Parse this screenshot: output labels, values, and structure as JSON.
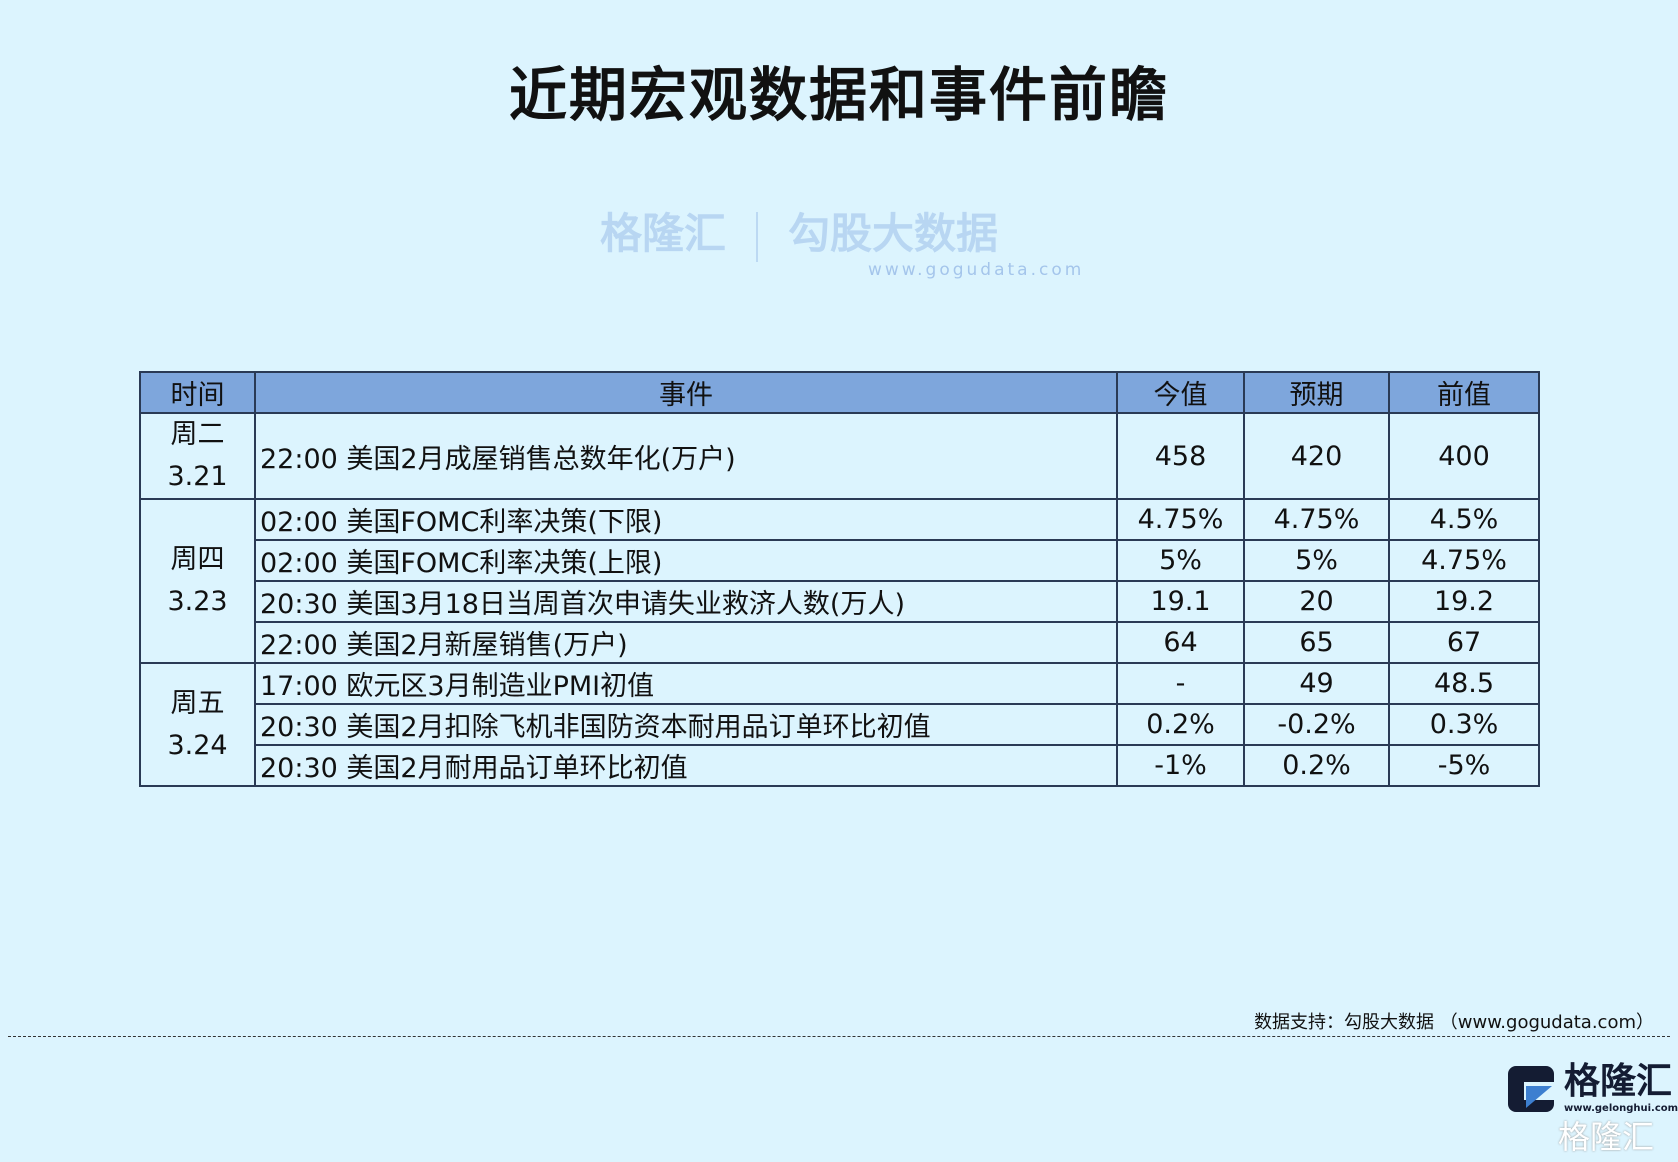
{
  "title": "近期宏观数据和事件前瞻",
  "table": {
    "headers": [
      "时间",
      "事件",
      "今值",
      "预期",
      "前值"
    ],
    "groups": [
      {
        "day": "周二",
        "date": "3.21",
        "rows": [
          {
            "event": "22:00 美国2月成屋销售总数年化(万户)",
            "current": "458",
            "forecast": "420",
            "previous": "400"
          }
        ]
      },
      {
        "day": "周四",
        "date": "3.23",
        "rows": [
          {
            "event": "02:00 美国FOMC利率决策(下限)",
            "current": "4.75%",
            "forecast": "4.75%",
            "previous": "4.5%"
          },
          {
            "event": "02:00 美国FOMC利率决策(上限)",
            "current": "5%",
            "forecast": "5%",
            "previous": "4.75%"
          },
          {
            "event": "20:30 美国3月18日当周首次申请失业救济人数(万人)",
            "current": "19.1",
            "forecast": "20",
            "previous": "19.2"
          },
          {
            "event": "22:00 美国2月新屋销售(万户)",
            "current": "64",
            "forecast": "65",
            "previous": "67"
          }
        ]
      },
      {
        "day": "周五",
        "date": "3.24",
        "rows": [
          {
            "event": "17:00 欧元区3月制造业PMI初值",
            "current": "-",
            "forecast": "49",
            "previous": "48.5"
          },
          {
            "event": "20:30 美国2月扣除飞机非国防资本耐用品订单环比初值",
            "current": "0.2%",
            "forecast": "-0.2%",
            "previous": "0.3%"
          },
          {
            "event": "20:30 美国2月耐用品订单环比初值",
            "current": "-1%",
            "forecast": "0.2%",
            "previous": "-5%"
          }
        ]
      }
    ],
    "header_color": "#7ea6dc"
  },
  "watermark": {
    "brand": "格隆汇",
    "data": "勾股大数据",
    "url": "www.gogudata.com"
  },
  "source": "数据支持：勾股大数据 （www.gogudata.com）",
  "logo": {
    "name": "格隆汇",
    "url": "www.gelonghui.com",
    "watermark": "格隆汇"
  },
  "background_color": "#dcf4fe"
}
